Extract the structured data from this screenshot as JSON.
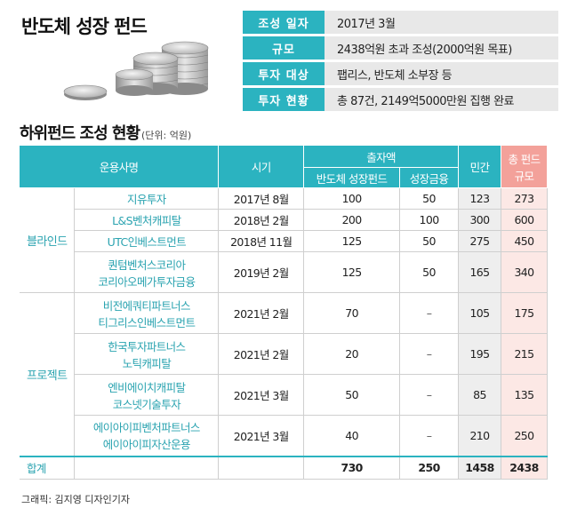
{
  "title": "반도체 성장 펀드",
  "info": [
    {
      "key": "조성 일자",
      "value": "2017년 3월"
    },
    {
      "key": "규모",
      "value": "2438억원 초과 조성(2000억원 목표)"
    },
    {
      "key": "투자 대상",
      "value": "팹리스, 반도체 소부장 등"
    },
    {
      "key": "투자 현황",
      "value": "총 87건, 2149억5000만원 집행 완료"
    }
  ],
  "subtitle": "하위펀드 조성 현황",
  "unit": "(단위: 억원)",
  "table": {
    "headers": {
      "manager": "운용사명",
      "period": "시기",
      "contribution": "출자액",
      "fund": "반도체 성장펀드",
      "growth": "성장금융",
      "private": "민간",
      "total_line1": "총 펀드",
      "total_line2": "규모"
    },
    "groups": [
      {
        "category": "블라인드",
        "rows": [
          {
            "manager1": "지유투자",
            "manager2": "",
            "period": "2017년 8월",
            "fund": "100",
            "growth": "50",
            "private": "123",
            "total": "273"
          },
          {
            "manager1": "L&S벤처캐피탈",
            "manager2": "",
            "period": "2018년 2월",
            "fund": "200",
            "growth": "100",
            "private": "300",
            "total": "600"
          },
          {
            "manager1": "UTC인베스트먼트",
            "manager2": "",
            "period": "2018년 11월",
            "fund": "125",
            "growth": "50",
            "private": "275",
            "total": "450"
          },
          {
            "manager1": "퀀텀벤처스코리아",
            "manager2": "코리아오메가투자금융",
            "period": "2019년 2월",
            "fund": "125",
            "growth": "50",
            "private": "165",
            "total": "340"
          }
        ]
      },
      {
        "category": "프로젝트",
        "rows": [
          {
            "manager1": "비전에쿼티파트너스",
            "manager2": "티그리스인베스트먼트",
            "period": "2021년 2월",
            "fund": "70",
            "growth": "–",
            "private": "105",
            "total": "175"
          },
          {
            "manager1": "한국투자파트너스",
            "manager2": "노틱캐피탈",
            "period": "2021년 2월",
            "fund": "20",
            "growth": "–",
            "private": "195",
            "total": "215"
          },
          {
            "manager1": "엔비에이치캐피탈",
            "manager2": "코스넷기술투자",
            "period": "2021년 3월",
            "fund": "50",
            "growth": "–",
            "private": "85",
            "total": "135"
          },
          {
            "manager1": "에이아이피벤처파트너스",
            "manager2": "에이아이피자산운용",
            "period": "2021년 3월",
            "fund": "40",
            "growth": "–",
            "private": "210",
            "total": "250"
          }
        ]
      }
    ],
    "total": {
      "label": "합계",
      "fund": "730",
      "growth": "250",
      "private": "1458",
      "total": "2438"
    }
  },
  "credit": "그래픽: 김지영 디자인기자",
  "colors": {
    "accent": "#2bb3c0",
    "accent_text": "#2aa3b0",
    "total_header": "#f3a19a",
    "total_cell": "#fce8e5",
    "private_cell": "#eeeeee"
  }
}
